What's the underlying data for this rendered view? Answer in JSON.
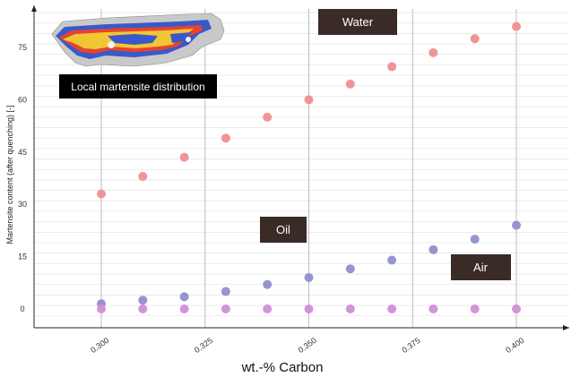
{
  "chart_data": {
    "type": "scatter",
    "xlabel": "wt.-% Carbon",
    "ylabel": "Martensite content (after quenching) [-]",
    "x_ticks": [
      "0.300",
      "0.325",
      "0.350",
      "0.375",
      "0.400"
    ],
    "y_ticks": [
      "0",
      "15",
      "30",
      "45",
      "60",
      "75"
    ],
    "xlim": [
      0.28,
      0.41
    ],
    "ylim": [
      -5,
      86
    ],
    "grid": true,
    "x": [
      0.3,
      0.31,
      0.32,
      0.33,
      0.34,
      0.35,
      0.36,
      0.37,
      0.38,
      0.39,
      0.4
    ],
    "series": [
      {
        "name": "Water",
        "color": "#ef8f8f",
        "values": [
          33,
          38,
          43.5,
          49,
          55,
          60,
          64.5,
          69.5,
          73.5,
          77.5,
          81
        ]
      },
      {
        "name": "Oil",
        "color": "#8f8fcf",
        "values": [
          1.5,
          2.5,
          3.5,
          5,
          7,
          9,
          11.5,
          14,
          17,
          20,
          24
        ]
      },
      {
        "name": "Air",
        "color": "#cf8fd6",
        "values": [
          0,
          0,
          0,
          0,
          0,
          0,
          0,
          0,
          0,
          0,
          0
        ]
      }
    ],
    "annotations": {
      "water": "Water",
      "oil": "Oil",
      "air": "Air",
      "inset_caption": "Local martensite distribution"
    },
    "colors": {
      "label_box": "#3a2b27",
      "caption_box": "#000000",
      "grid": "#cfcfcf"
    }
  }
}
